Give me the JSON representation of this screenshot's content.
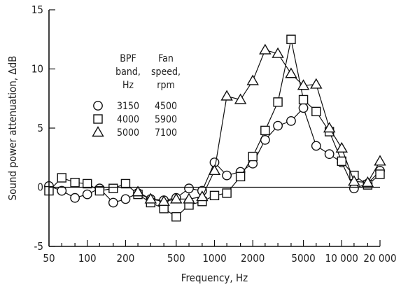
{
  "chart_data": {
    "type": "line",
    "xlabel": "Frequency, Hz",
    "ylabel": "Sound power attenuation, ΔdB",
    "xscale": "log",
    "xlim": [
      50,
      20000
    ],
    "ylim": [
      -5,
      15
    ],
    "grid": false,
    "x_tick_labels": [
      {
        "value": 50,
        "label": "50"
      },
      {
        "value": 100,
        "label": "100"
      },
      {
        "value": 200,
        "label": "200"
      },
      {
        "value": 500,
        "label": "500"
      },
      {
        "value": 1000,
        "label": "1000"
      },
      {
        "value": 2000,
        "label": "2000"
      },
      {
        "value": 5000,
        "label": "5000"
      },
      {
        "value": 10000,
        "label": "10 000"
      },
      {
        "value": 20000,
        "label": "20 000"
      }
    ],
    "x_tick_values": [
      50,
      63,
      80,
      100,
      125,
      160,
      200,
      250,
      315,
      400,
      500,
      630,
      800,
      1000,
      1250,
      1600,
      2000,
      2500,
      3150,
      4000,
      5000,
      6300,
      8000,
      10000,
      12500,
      16000,
      20000
    ],
    "y_tick_labels": [
      {
        "value": -5,
        "label": "-5"
      },
      {
        "value": 0,
        "label": "0"
      },
      {
        "value": 5,
        "label": "5"
      },
      {
        "value": 10,
        "label": "10"
      },
      {
        "value": 15,
        "label": "15"
      }
    ],
    "legend": {
      "placement": "left",
      "header_col1": [
        "BPF",
        "band,",
        "Hz"
      ],
      "header_col2": [
        "Fan",
        "speed,",
        "rpm"
      ],
      "rows": [
        {
          "marker": "circle",
          "bpf": "3150",
          "speed": "4500"
        },
        {
          "marker": "square",
          "bpf": "4000",
          "speed": "5900"
        },
        {
          "marker": "triangle",
          "bpf": "5000",
          "speed": "7100"
        }
      ]
    },
    "series": [
      {
        "marker": "circle",
        "x": [
          50,
          63,
          80,
          100,
          125,
          160,
          200,
          250,
          315,
          400,
          500,
          630,
          800,
          1000,
          1250,
          1600,
          2000,
          2500,
          3150,
          4000,
          5000,
          6300,
          8000,
          10000,
          12500,
          16000,
          20000
        ],
        "y": [
          0.1,
          -0.3,
          -0.9,
          -0.6,
          -0.1,
          -1.3,
          -1.0,
          -0.5,
          -1.0,
          -1.1,
          -0.9,
          -0.1,
          -0.3,
          2.1,
          1.0,
          1.3,
          2.0,
          4.0,
          5.2,
          5.6,
          6.7,
          3.5,
          2.8,
          2.1,
          -0.1,
          0.3,
          1.4
        ]
      },
      {
        "marker": "square",
        "x": [
          50,
          63,
          80,
          100,
          125,
          160,
          200,
          250,
          315,
          400,
          500,
          630,
          800,
          1000,
          1250,
          1600,
          2000,
          2500,
          3150,
          4000,
          5000,
          6300,
          8000,
          10000,
          12500,
          16000,
          20000
        ],
        "y": [
          -0.3,
          0.8,
          0.4,
          0.3,
          -0.3,
          -0.1,
          0.3,
          -0.6,
          -1.3,
          -1.8,
          -2.5,
          -1.5,
          -1.2,
          -0.7,
          -0.5,
          0.9,
          2.6,
          4.8,
          7.2,
          12.5,
          7.4,
          6.4,
          4.7,
          2.2,
          1.0,
          0.2,
          1.1
        ]
      },
      {
        "marker": "triangle",
        "x": [
          250,
          315,
          400,
          500,
          630,
          800,
          1000,
          1250,
          1600,
          2000,
          2500,
          3150,
          4000,
          5000,
          6300,
          8000,
          10000,
          12500,
          16000,
          20000
        ],
        "y": [
          -0.4,
          -1.0,
          -1.2,
          -1.0,
          -1.0,
          -0.8,
          1.4,
          7.7,
          7.4,
          9.0,
          11.6,
          11.3,
          9.6,
          8.6,
          8.7,
          5.0,
          3.3,
          0.5,
          0.4,
          2.2
        ]
      }
    ]
  }
}
